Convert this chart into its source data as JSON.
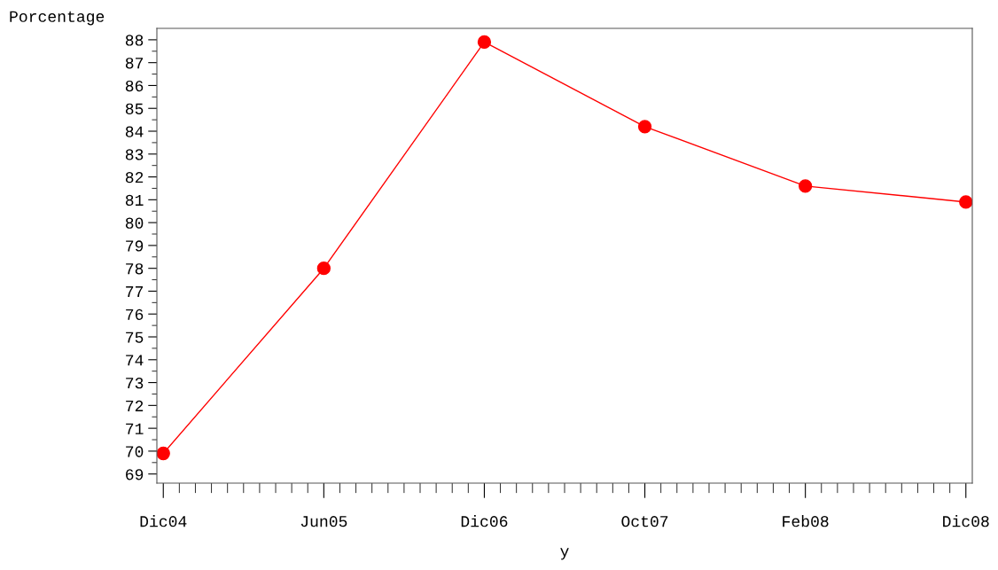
{
  "chart_data": {
    "type": "line",
    "xlabel": "y",
    "ylabel": "Porcentage",
    "categories": [
      "Dic04",
      "Jun05",
      "Dic06",
      "Oct07",
      "Feb08",
      "Dic08"
    ],
    "series": [
      {
        "color": "#ff0000",
        "values": [
          69.9,
          78.0,
          87.9,
          84.2,
          81.6,
          80.9
        ]
      }
    ],
    "ylim": [
      68.6,
      88.5
    ],
    "yticks": [
      69,
      70,
      71,
      72,
      73,
      74,
      75,
      76,
      77,
      78,
      79,
      80,
      81,
      82,
      83,
      84,
      85,
      86,
      87,
      88
    ],
    "marker": "circle",
    "line_style": "solid",
    "grid": false,
    "legend": false
  }
}
